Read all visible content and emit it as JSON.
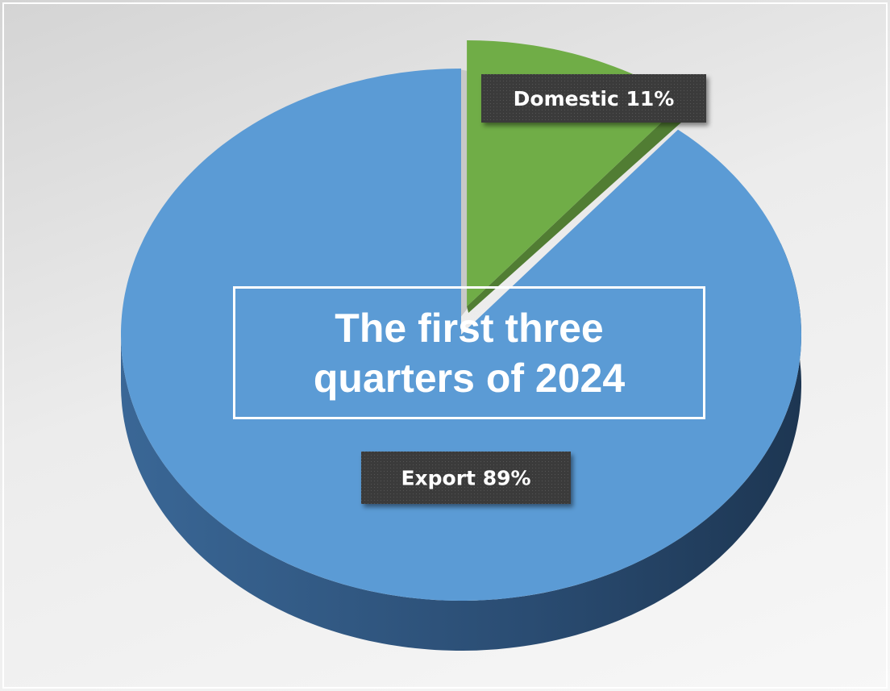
{
  "chart_data": {
    "type": "pie",
    "title": "The first three quarters of 2024",
    "categories": [
      "Domestic",
      "Export"
    ],
    "values": [
      11,
      89
    ],
    "value_labels": [
      "11%",
      "89%"
    ],
    "colors": [
      "#70ad47",
      "#5b9bd5"
    ],
    "explode": [
      true,
      false
    ],
    "three_d": true
  }
}
